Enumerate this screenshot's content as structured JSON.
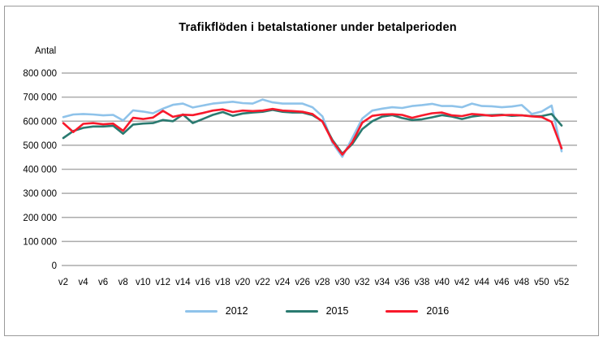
{
  "chart_data": {
    "type": "line",
    "title": "Trafikflöden i betalstationer under betalperioden",
    "ylabel": "Antal",
    "xlabel": "",
    "ylim": [
      0,
      800000
    ],
    "ytick_step": 100000,
    "yticks": [
      "0",
      "100 000",
      "200 000",
      "300 000",
      "400 000",
      "500 000",
      "600 000",
      "700 000",
      "800 000"
    ],
    "grid": "horizontal",
    "legend_position": "bottom",
    "x": [
      "v2",
      "v3",
      "v4",
      "v5",
      "v6",
      "v7",
      "v8",
      "v9",
      "v10",
      "v11",
      "v12",
      "v13",
      "v14",
      "v15",
      "v16",
      "v17",
      "v18",
      "v19",
      "v20",
      "v21",
      "v22",
      "v23",
      "v24",
      "v25",
      "v26",
      "v27",
      "v28",
      "v29",
      "v30",
      "v31",
      "v32",
      "v33",
      "v34",
      "v35",
      "v36",
      "v37",
      "v38",
      "v39",
      "v40",
      "v41",
      "v42",
      "v43",
      "v44",
      "v45",
      "v46",
      "v47",
      "v48",
      "v49",
      "v50",
      "v51",
      "v52"
    ],
    "x_tick_every": 2,
    "series": [
      {
        "name": "2012",
        "color": "#8FC3EA",
        "values": [
          617000,
          628000,
          630000,
          628000,
          624000,
          626000,
          603000,
          645000,
          640000,
          633000,
          652000,
          668000,
          673000,
          657000,
          665000,
          673000,
          677000,
          681000,
          675000,
          673000,
          690000,
          678000,
          673000,
          673000,
          673000,
          658000,
          620000,
          510000,
          452000,
          530000,
          611000,
          644000,
          652000,
          658000,
          655000,
          663000,
          667000,
          672000,
          663000,
          663000,
          658000,
          673000,
          663000,
          662000,
          658000,
          661000,
          667000,
          630000,
          640000,
          665000,
          475000
        ]
      },
      {
        "name": "2015",
        "color": "#2A7A70",
        "values": [
          530000,
          559000,
          572000,
          578000,
          578000,
          581000,
          548000,
          586000,
          590000,
          592000,
          605000,
          600000,
          628000,
          592000,
          609000,
          626000,
          638000,
          622000,
          632000,
          636000,
          639000,
          647000,
          639000,
          636000,
          636000,
          625000,
          600000,
          522000,
          465000,
          505000,
          567000,
          600000,
          619000,
          625000,
          613000,
          605000,
          608000,
          616000,
          625000,
          619000,
          609000,
          619000,
          624000,
          625000,
          627000,
          622000,
          624000,
          621000,
          621000,
          630000,
          582000
        ]
      },
      {
        "name": "2016",
        "color": "#F8192B",
        "values": [
          592000,
          555000,
          589000,
          592000,
          587000,
          590000,
          560000,
          614000,
          609000,
          615000,
          643000,
          618000,
          627000,
          625000,
          634000,
          644000,
          649000,
          638000,
          644000,
          642000,
          644000,
          651000,
          644000,
          642000,
          639000,
          630000,
          598000,
          517000,
          461000,
          512000,
          594000,
          622000,
          628000,
          629000,
          626000,
          614000,
          624000,
          633000,
          636000,
          624000,
          621000,
          630000,
          627000,
          622000,
          625000,
          626000,
          624000,
          620000,
          617000,
          597000,
          487000
        ]
      }
    ]
  },
  "style": {
    "gridline_color": "#ABABAB",
    "text_color": "#000000",
    "frame_color": "#9a9a9a"
  }
}
